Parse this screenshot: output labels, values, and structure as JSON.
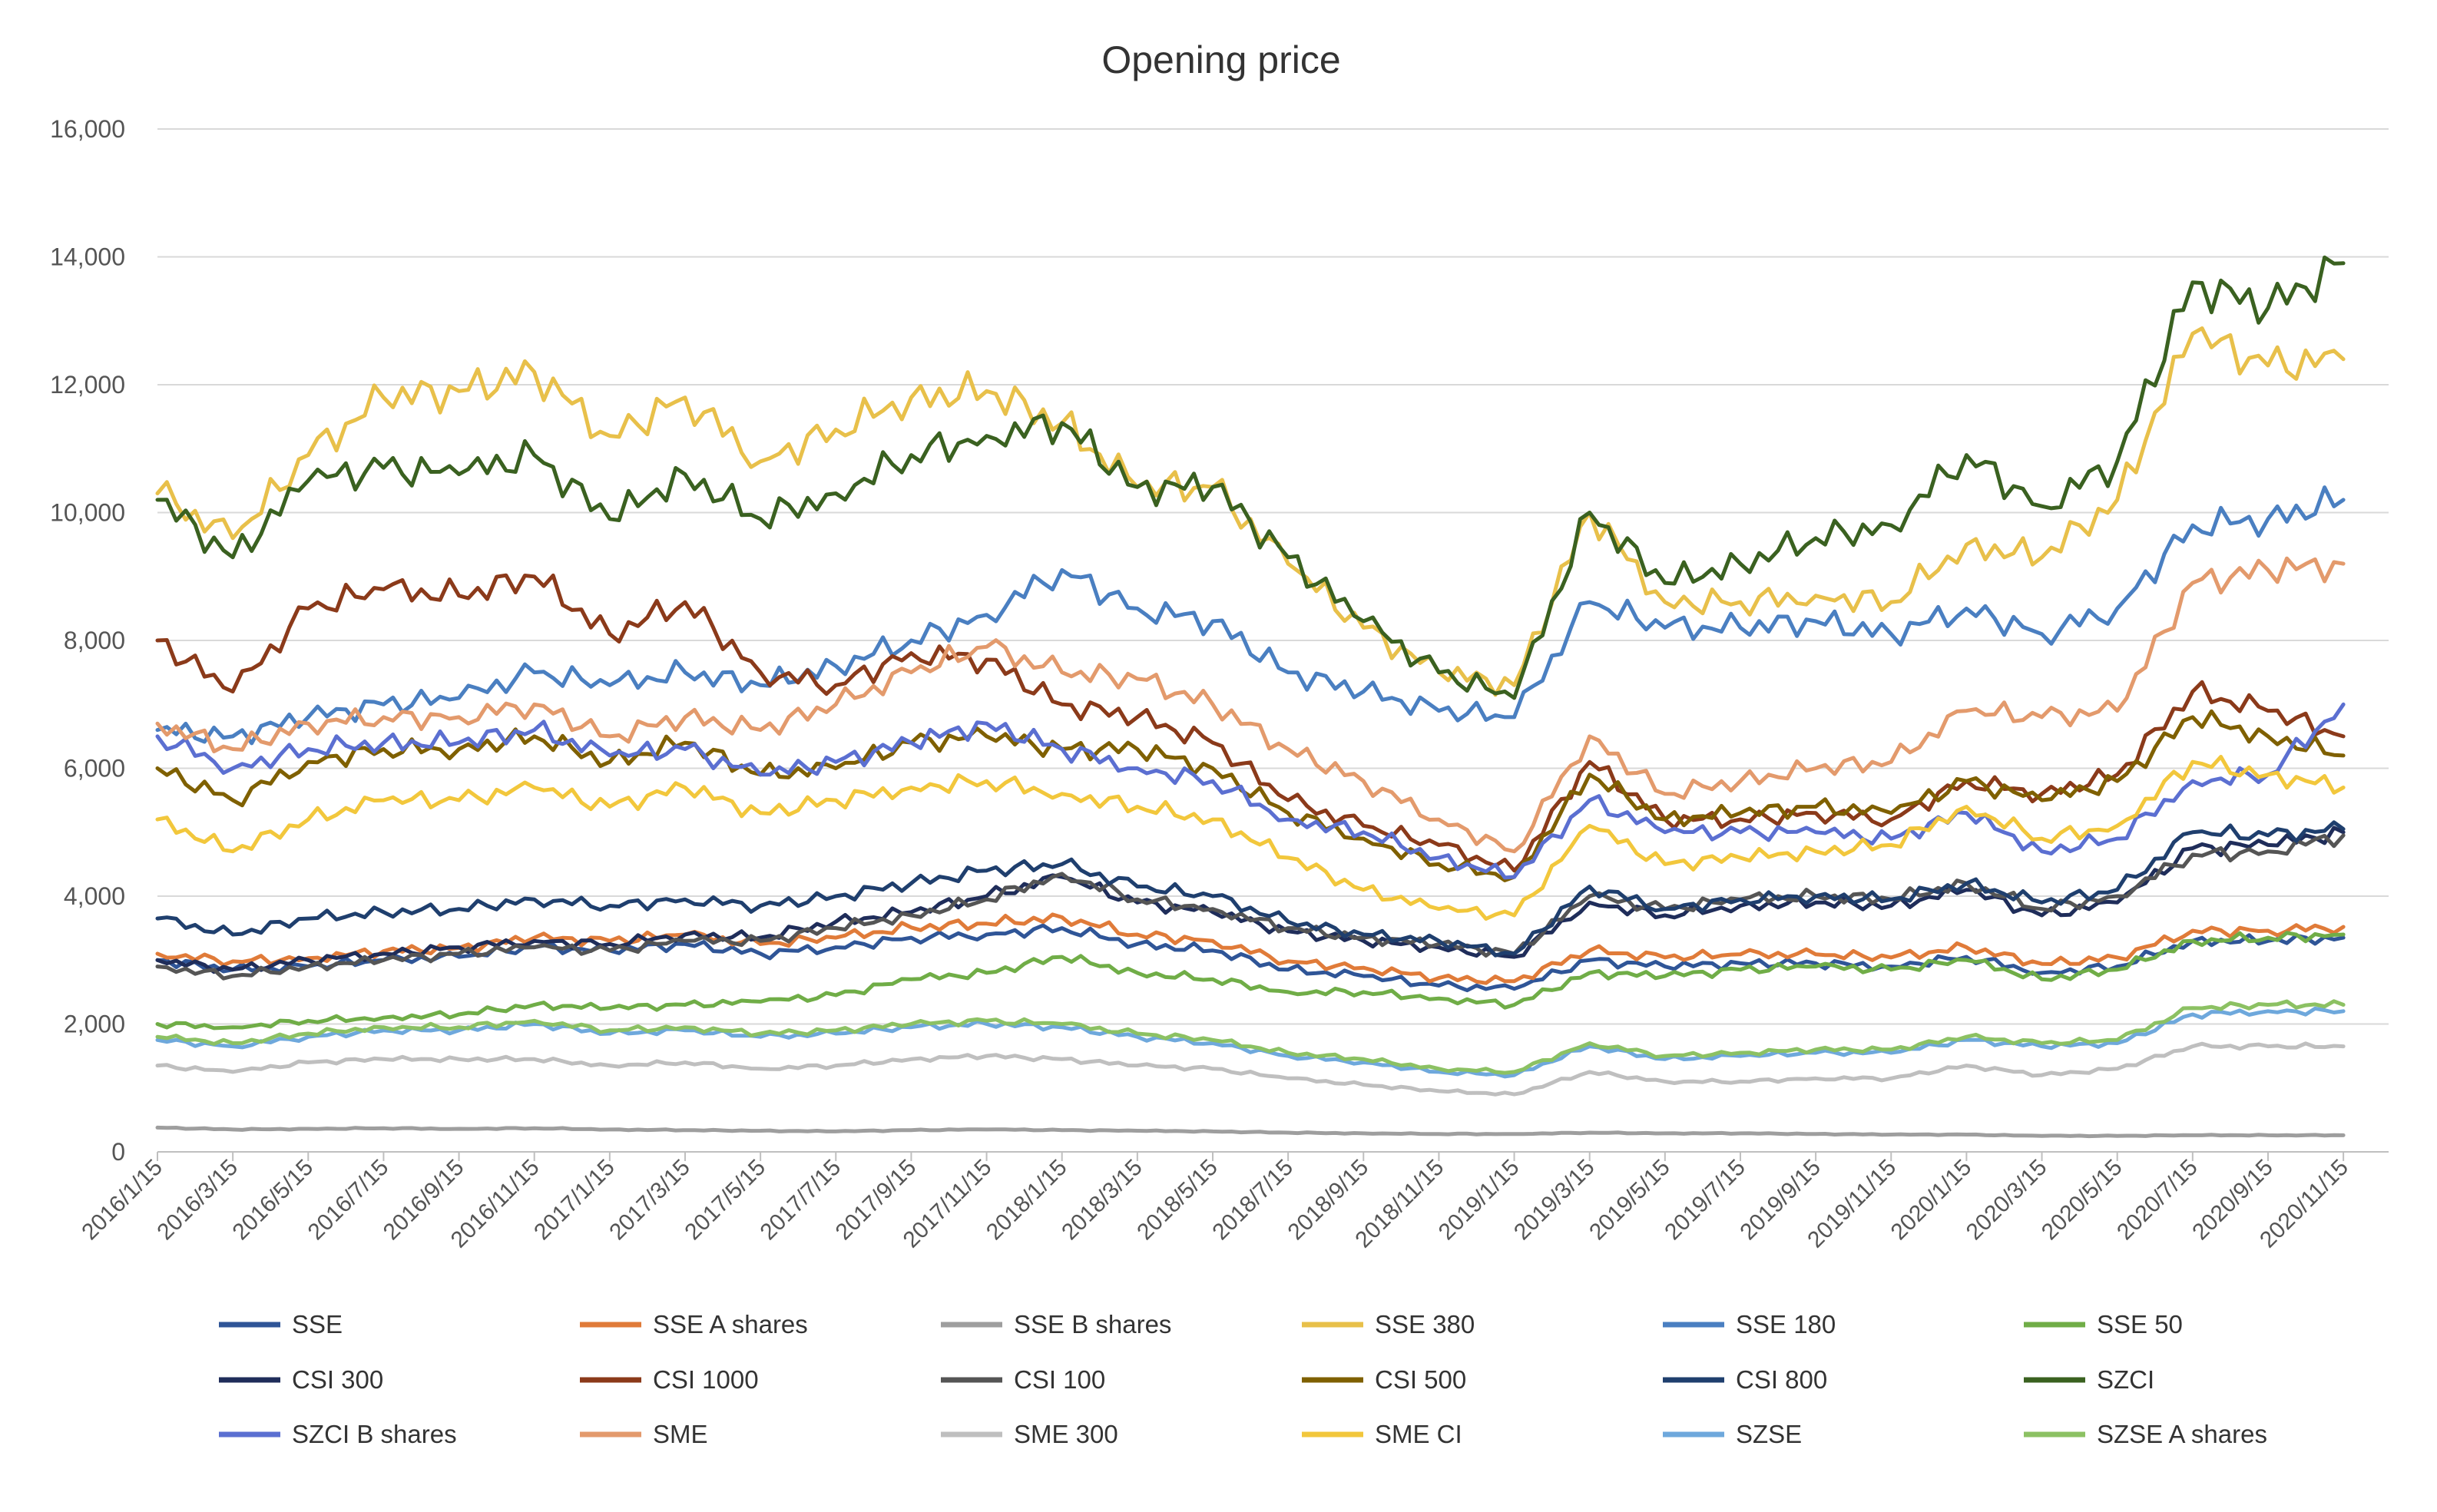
{
  "chart_data": {
    "type": "line",
    "title": "Opening price",
    "xlabel": "",
    "ylabel": "",
    "ylim": [
      0,
      16000
    ],
    "yticks": [
      0,
      2000,
      4000,
      6000,
      8000,
      10000,
      12000,
      14000,
      16000
    ],
    "ytick_labels": [
      "0",
      "2,000",
      "4,000",
      "6,000",
      "8,000",
      "10,000",
      "12,000",
      "14,000",
      "16,000"
    ],
    "grid": true,
    "legend": "bottom",
    "x": [
      "2016/1/15",
      "2016/3/15",
      "2016/5/15",
      "2016/7/15",
      "2016/9/15",
      "2016/11/15",
      "2017/1/15",
      "2017/3/15",
      "2017/5/15",
      "2017/7/15",
      "2017/9/15",
      "2017/11/15",
      "2018/1/15",
      "2018/3/15",
      "2018/5/15",
      "2018/7/15",
      "2018/9/15",
      "2018/11/15",
      "2019/1/15",
      "2019/3/15",
      "2019/5/15",
      "2019/7/15",
      "2019/9/15",
      "2019/11/15",
      "2020/1/15",
      "2020/3/15",
      "2020/5/15",
      "2020/7/15",
      "2020/9/15",
      "2020/11/15"
    ],
    "series": [
      {
        "name": "SSE",
        "color": "#2f5597",
        "values": [
          3000,
          2850,
          2900,
          3000,
          3050,
          3200,
          3150,
          3250,
          3100,
          3200,
          3350,
          3400,
          3500,
          3250,
          3150,
          2850,
          2750,
          2600,
          2550,
          3000,
          2900,
          2950,
          2950,
          2900,
          3050,
          2800,
          2900,
          3300,
          3300,
          3350
        ]
      },
      {
        "name": "SSE A shares",
        "color": "#e07b39",
        "values": [
          3100,
          2980,
          3030,
          3140,
          3190,
          3350,
          3300,
          3400,
          3250,
          3350,
          3510,
          3570,
          3670,
          3400,
          3300,
          2980,
          2880,
          2720,
          2670,
          3150,
          3040,
          3090,
          3090,
          3040,
          3200,
          2940,
          3040,
          3460,
          3460,
          3520
        ]
      },
      {
        "name": "SSE B shares",
        "color": "#9e9e9e",
        "values": [
          380,
          350,
          360,
          370,
          360,
          370,
          350,
          340,
          330,
          320,
          340,
          350,
          340,
          330,
          320,
          300,
          290,
          280,
          280,
          300,
          290,
          290,
          280,
          270,
          270,
          250,
          250,
          260,
          260,
          260
        ]
      },
      {
        "name": "SSE 380",
        "color": "#e8c04a",
        "values": [
          10300,
          9600,
          10900,
          11800,
          11900,
          12200,
          11200,
          11800,
          10800,
          11300,
          11800,
          11900,
          11400,
          10400,
          10400,
          9200,
          8200,
          7500,
          7300,
          10000,
          8600,
          8600,
          8700,
          8600,
          9500,
          9300,
          10200,
          12800,
          12300,
          12400
        ]
      },
      {
        "name": "SSE 180",
        "color": "#4a7fc1",
        "values": [
          6600,
          6500,
          6800,
          7000,
          7100,
          7500,
          7300,
          7500,
          7300,
          7600,
          8000,
          8400,
          9100,
          8500,
          8300,
          7500,
          7200,
          6900,
          6800,
          8600,
          8200,
          8200,
          8300,
          8100,
          8500,
          8100,
          8500,
          9800,
          9900,
          10200
        ]
      },
      {
        "name": "SSE 50",
        "color": "#70ad47",
        "values": [
          2000,
          1950,
          2050,
          2100,
          2150,
          2300,
          2250,
          2300,
          2350,
          2450,
          2700,
          2800,
          3050,
          2800,
          2700,
          2500,
          2500,
          2400,
          2300,
          2800,
          2750,
          2850,
          2900,
          2850,
          3000,
          2700,
          2850,
          3300,
          3350,
          3400
        ]
      },
      {
        "name": "CSI 300",
        "color": "#1f2d5a",
        "values": [
          3000,
          2850,
          3000,
          3100,
          3200,
          3300,
          3250,
          3400,
          3350,
          3600,
          3750,
          4000,
          4300,
          3900,
          3750,
          3450,
          3300,
          3200,
          3050,
          3900,
          3700,
          3850,
          3900,
          3850,
          4100,
          3700,
          3900,
          4750,
          4800,
          5000
        ]
      },
      {
        "name": "CSI 1000",
        "color": "#8b3a1a",
        "values": [
          8000,
          7200,
          8500,
          8800,
          8700,
          9000,
          8100,
          8600,
          7500,
          7300,
          7800,
          7700,
          7000,
          6800,
          6400,
          5500,
          5100,
          4800,
          4400,
          6100,
          5200,
          5200,
          5300,
          5200,
          5800,
          5600,
          5900,
          7200,
          6900,
          6500
        ]
      },
      {
        "name": "CSI 100",
        "color": "#555555",
        "values": [
          2900,
          2750,
          2900,
          3000,
          3100,
          3200,
          3150,
          3300,
          3300,
          3500,
          3700,
          3950,
          4350,
          3950,
          3800,
          3500,
          3350,
          3250,
          3100,
          4000,
          3800,
          3950,
          4000,
          3950,
          4200,
          3800,
          4000,
          4650,
          4700,
          4950
        ]
      },
      {
        "name": "CSI 500",
        "color": "#7f6000",
        "values": [
          6000,
          5500,
          6100,
          6300,
          6300,
          6500,
          6100,
          6400,
          5900,
          6000,
          6400,
          6500,
          6300,
          6300,
          6000,
          5300,
          4900,
          4500,
          4300,
          5900,
          5200,
          5300,
          5400,
          5300,
          5800,
          5500,
          5800,
          6800,
          6500,
          6200
        ]
      },
      {
        "name": "CSI 800",
        "color": "#1f3f6e",
        "values": [
          3650,
          3400,
          3650,
          3750,
          3800,
          3950,
          3850,
          3950,
          3850,
          4000,
          4200,
          4400,
          4500,
          4150,
          4000,
          3600,
          3400,
          3300,
          3100,
          4150,
          3800,
          3950,
          4000,
          3950,
          4200,
          3900,
          4100,
          5000,
          4950,
          5050
        ]
      },
      {
        "name": "SZCI",
        "color": "#3a6120",
        "values": [
          10200,
          9300,
          10500,
          10700,
          10600,
          10900,
          9900,
          10600,
          9900,
          10300,
          10900,
          11200,
          11400,
          10400,
          10400,
          9300,
          8300,
          7500,
          7100,
          10000,
          8900,
          9200,
          9600,
          9800,
          10900,
          10100,
          10800,
          13600,
          13200,
          13900
        ]
      },
      {
        "name": "SZCI B shares",
        "color": "#5b6fd1",
        "values": [
          6500,
          6000,
          6300,
          6400,
          6400,
          6600,
          6200,
          6300,
          5900,
          6100,
          6400,
          6700,
          6300,
          6000,
          5800,
          5200,
          5000,
          4600,
          4300,
          5500,
          5000,
          5000,
          5000,
          4900,
          5300,
          4700,
          4900,
          5800,
          5900,
          7000
        ]
      },
      {
        "name": "SME",
        "color": "#e39a6c",
        "values": [
          6700,
          6300,
          6700,
          6800,
          6800,
          7000,
          6500,
          6800,
          6600,
          7000,
          7500,
          7900,
          7500,
          7400,
          7000,
          6300,
          5800,
          5200,
          4700,
          6500,
          5600,
          5800,
          6000,
          6100,
          6900,
          6800,
          6900,
          8900,
          9100,
          9200
        ]
      },
      {
        "name": "SME 300",
        "color": "#bfbfbf",
        "values": [
          1350,
          1250,
          1400,
          1450,
          1450,
          1450,
          1350,
          1400,
          1300,
          1350,
          1450,
          1500,
          1450,
          1350,
          1300,
          1150,
          1050,
          950,
          900,
          1250,
          1100,
          1100,
          1150,
          1150,
          1350,
          1200,
          1300,
          1650,
          1650,
          1650
        ]
      },
      {
        "name": "SME CI",
        "color": "#f2c73c",
        "values": [
          5200,
          4700,
          5200,
          5500,
          5500,
          5700,
          5400,
          5700,
          5300,
          5500,
          5700,
          5800,
          5600,
          5400,
          5200,
          4600,
          4100,
          3800,
          3700,
          5100,
          4500,
          4600,
          4700,
          4800,
          5400,
          4900,
          5100,
          6100,
          5900,
          5700
        ]
      },
      {
        "name": "SZSE",
        "color": "#6ea8dc",
        "values": [
          1750,
          1650,
          1800,
          1900,
          1900,
          2000,
          1850,
          1900,
          1800,
          1850,
          1950,
          2000,
          1950,
          1800,
          1700,
          1500,
          1400,
          1250,
          1200,
          1650,
          1450,
          1500,
          1550,
          1550,
          1750,
          1650,
          1700,
          2150,
          2200,
          2200
        ]
      },
      {
        "name": "SZSE A shares",
        "color": "#8cc163",
        "values": [
          1800,
          1700,
          1850,
          1950,
          1950,
          2050,
          1900,
          1950,
          1850,
          1900,
          2000,
          2050,
          2000,
          1850,
          1750,
          1550,
          1450,
          1300,
          1250,
          1700,
          1500,
          1550,
          1600,
          1600,
          1800,
          1700,
          1750,
          2250,
          2300,
          2300
        ]
      }
    ]
  }
}
